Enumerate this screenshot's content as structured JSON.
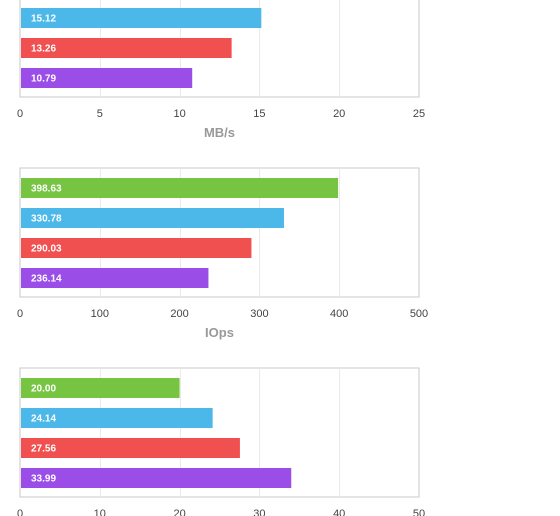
{
  "chart_data": [
    {
      "type": "bar",
      "orientation": "horizontal",
      "values": [
        15.12,
        13.26,
        10.79
      ],
      "data_labels": [
        "15.12",
        "13.26",
        "10.79"
      ],
      "colors": [
        "#4cb8ea",
        "#f05050",
        "#9b4de8"
      ],
      "xlim": [
        0,
        25
      ],
      "ticks": [
        0,
        5,
        10,
        15,
        20,
        25
      ],
      "tick_labels": [
        "0",
        "5",
        "10",
        "15",
        "20",
        "25"
      ],
      "xlabel": "MB/s",
      "grid": true
    },
    {
      "type": "bar",
      "orientation": "horizontal",
      "values": [
        398.63,
        330.78,
        290.03,
        236.14
      ],
      "data_labels": [
        "398.63",
        "330.78",
        "290.03",
        "236.14"
      ],
      "colors": [
        "#76c442",
        "#4cb8ea",
        "#f05050",
        "#9b4de8"
      ],
      "xlim": [
        0,
        500
      ],
      "ticks": [
        0,
        100,
        200,
        300,
        400,
        500
      ],
      "tick_labels": [
        "0",
        "100",
        "200",
        "300",
        "400",
        "500"
      ],
      "xlabel": "IOps",
      "grid": true
    },
    {
      "type": "bar",
      "orientation": "horizontal",
      "values": [
        20.0,
        24.14,
        27.56,
        33.99
      ],
      "data_labels": [
        "20.00",
        "24.14",
        "27.56",
        "33.99"
      ],
      "colors": [
        "#76c442",
        "#4cb8ea",
        "#f05050",
        "#9b4de8"
      ],
      "xlim": [
        0,
        50
      ],
      "ticks": [
        0,
        10,
        20,
        30,
        40,
        50
      ],
      "tick_labels": [
        "0",
        "10",
        "20",
        "30",
        "40",
        "50"
      ],
      "xlabel": "",
      "grid": true
    }
  ]
}
